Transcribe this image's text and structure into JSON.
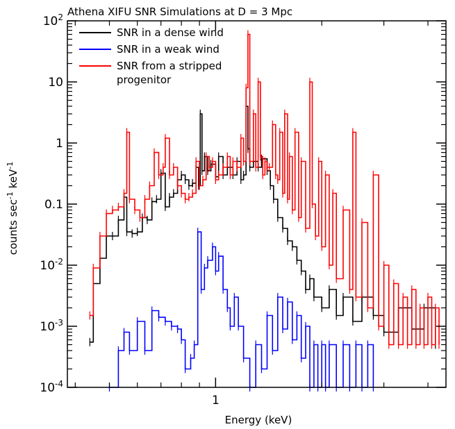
{
  "chart_data": {
    "type": "line",
    "title": "Athena XIFU SNR Simulations at D = 3 Mpc",
    "xlabel": "Energy (keV)",
    "ylabel": {
      "base": "counts sec",
      "sup1": "-1",
      "mid": " keV",
      "sup2": "-1"
    },
    "x_scale": "log",
    "y_scale": "log",
    "xlim": [
      0.38,
      4.5
    ],
    "ylim": [
      0.0001,
      100
    ],
    "x_ticks": [
      {
        "value": 1,
        "label": "1"
      }
    ],
    "y_ticks": [
      {
        "value": 100,
        "base": "10",
        "sup": "2"
      },
      {
        "value": 10,
        "base": "10",
        "sup": ""
      },
      {
        "value": 1,
        "base": "1",
        "sup": ""
      },
      {
        "value": 0.1,
        "base": "0.1",
        "sup": ""
      },
      {
        "value": 0.01,
        "base": "10",
        "sup": "-2"
      },
      {
        "value": 0.001,
        "base": "10",
        "sup": "-3"
      },
      {
        "value": 0.0001,
        "base": "10",
        "sup": "-4"
      }
    ],
    "legend_position": "top-left",
    "series": [
      {
        "name": "SNR in a dense wind",
        "label_lines": [
          "SNR in a dense wind"
        ],
        "color": "#000000",
        "points": [
          [
            0.44,
            0.00055
          ],
          [
            0.45,
            0.005
          ],
          [
            0.47,
            0.013
          ],
          [
            0.49,
            0.03
          ],
          [
            0.51,
            0.03
          ],
          [
            0.53,
            0.055
          ],
          [
            0.55,
            0.13
          ],
          [
            0.56,
            0.035
          ],
          [
            0.58,
            0.033
          ],
          [
            0.6,
            0.035
          ],
          [
            0.62,
            0.06
          ],
          [
            0.64,
            0.055
          ],
          [
            0.66,
            0.11
          ],
          [
            0.68,
            0.12
          ],
          [
            0.7,
            0.32
          ],
          [
            0.72,
            0.09
          ],
          [
            0.74,
            0.13
          ],
          [
            0.76,
            0.15
          ],
          [
            0.78,
            0.25
          ],
          [
            0.8,
            0.3
          ],
          [
            0.82,
            0.25
          ],
          [
            0.84,
            0.2
          ],
          [
            0.86,
            0.22
          ],
          [
            0.88,
            0.4
          ],
          [
            0.895,
            0.2
          ],
          [
            0.905,
            3.0
          ],
          [
            0.915,
            0.35
          ],
          [
            0.93,
            0.6
          ],
          [
            0.95,
            0.35
          ],
          [
            0.97,
            0.45
          ],
          [
            1.0,
            0.28
          ],
          [
            1.02,
            0.6
          ],
          [
            1.05,
            0.3
          ],
          [
            1.08,
            0.4
          ],
          [
            1.12,
            0.3
          ],
          [
            1.15,
            0.5
          ],
          [
            1.18,
            0.25
          ],
          [
            1.2,
            0.3
          ],
          [
            1.22,
            4.0
          ],
          [
            1.235,
            0.8
          ],
          [
            1.25,
            0.4
          ],
          [
            1.28,
            0.5
          ],
          [
            1.32,
            0.4
          ],
          [
            1.35,
            0.55
          ],
          [
            1.4,
            0.35
          ],
          [
            1.43,
            0.2
          ],
          [
            1.46,
            0.12
          ],
          [
            1.5,
            0.06
          ],
          [
            1.55,
            0.04
          ],
          [
            1.6,
            0.025
          ],
          [
            1.65,
            0.02
          ],
          [
            1.7,
            0.012
          ],
          [
            1.75,
            0.008
          ],
          [
            1.8,
            0.004
          ],
          [
            1.85,
            0.006
          ],
          [
            1.9,
            0.003
          ],
          [
            2.0,
            0.002
          ],
          [
            2.1,
            0.004
          ],
          [
            2.2,
            0.0015
          ],
          [
            2.3,
            0.003
          ],
          [
            2.45,
            0.0012
          ],
          [
            2.6,
            0.003
          ],
          [
            2.8,
            0.0015
          ],
          [
            3.0,
            0.0008
          ],
          [
            3.3,
            0.002
          ],
          [
            3.6,
            0.0009
          ],
          [
            3.9,
            0.002
          ],
          [
            4.2,
            0.0005
          ]
        ]
      },
      {
        "name": "SNR in a weak wind",
        "label_lines": [
          "SNR in a weak wind"
        ],
        "color": "#0000ff",
        "points": [
          [
            0.5,
            0.0001
          ],
          [
            0.53,
            0.0004
          ],
          [
            0.55,
            0.0008
          ],
          [
            0.57,
            0.0004
          ],
          [
            0.6,
            0.0012
          ],
          [
            0.63,
            0.0004
          ],
          [
            0.66,
            0.0018
          ],
          [
            0.69,
            0.0014
          ],
          [
            0.72,
            0.0012
          ],
          [
            0.75,
            0.001
          ],
          [
            0.78,
            0.0009
          ],
          [
            0.8,
            0.0006
          ],
          [
            0.82,
            0.0002
          ],
          [
            0.85,
            0.0003
          ],
          [
            0.87,
            0.0005
          ],
          [
            0.89,
            0.035
          ],
          [
            0.91,
            0.004
          ],
          [
            0.93,
            0.009
          ],
          [
            0.95,
            0.012
          ],
          [
            0.98,
            0.02
          ],
          [
            1.0,
            0.008
          ],
          [
            1.02,
            0.014
          ],
          [
            1.05,
            0.004
          ],
          [
            1.08,
            0.002
          ],
          [
            1.1,
            0.001
          ],
          [
            1.13,
            0.003
          ],
          [
            1.16,
            0.001
          ],
          [
            1.2,
            0.0003
          ],
          [
            1.25,
            0.0001
          ],
          [
            1.3,
            0.0005
          ],
          [
            1.35,
            0.0002
          ],
          [
            1.4,
            0.0015
          ],
          [
            1.45,
            0.0004
          ],
          [
            1.5,
            0.003
          ],
          [
            1.55,
            0.0009
          ],
          [
            1.6,
            0.0025
          ],
          [
            1.65,
            0.0006
          ],
          [
            1.7,
            0.0015
          ],
          [
            1.75,
            0.0003
          ],
          [
            1.8,
            0.001
          ],
          [
            1.85,
            0.0001
          ],
          [
            1.9,
            0.0005
          ],
          [
            1.95,
            0.0001
          ],
          [
            2.0,
            0.0005
          ],
          [
            2.05,
            0.0001
          ],
          [
            2.1,
            0.0005
          ],
          [
            2.2,
            0.0001
          ],
          [
            2.3,
            0.0005
          ],
          [
            2.4,
            0.0001
          ],
          [
            2.5,
            0.0005
          ],
          [
            2.6,
            0.0001
          ],
          [
            2.7,
            0.0005
          ],
          [
            2.8,
            0.0001
          ]
        ]
      },
      {
        "name": "SNR from a stripped progenitor",
        "label_lines": [
          "SNR from a stripped",
          "progenitor"
        ],
        "color": "#ff0000",
        "points": [
          [
            0.44,
            0.0015
          ],
          [
            0.45,
            0.009
          ],
          [
            0.47,
            0.03
          ],
          [
            0.49,
            0.07
          ],
          [
            0.51,
            0.08
          ],
          [
            0.53,
            0.09
          ],
          [
            0.55,
            0.15
          ],
          [
            0.56,
            1.5
          ],
          [
            0.57,
            0.12
          ],
          [
            0.59,
            0.08
          ],
          [
            0.61,
            0.06
          ],
          [
            0.63,
            0.12
          ],
          [
            0.65,
            0.2
          ],
          [
            0.67,
            0.7
          ],
          [
            0.69,
            0.3
          ],
          [
            0.71,
            0.4
          ],
          [
            0.72,
            1.2
          ],
          [
            0.74,
            0.3
          ],
          [
            0.76,
            0.4
          ],
          [
            0.78,
            0.2
          ],
          [
            0.8,
            0.15
          ],
          [
            0.82,
            0.12
          ],
          [
            0.84,
            0.13
          ],
          [
            0.86,
            0.15
          ],
          [
            0.88,
            0.5
          ],
          [
            0.9,
            0.2
          ],
          [
            0.92,
            0.25
          ],
          [
            0.94,
            0.6
          ],
          [
            0.96,
            0.4
          ],
          [
            0.98,
            0.5
          ],
          [
            1.0,
            0.25
          ],
          [
            1.02,
            0.3
          ],
          [
            1.05,
            0.4
          ],
          [
            1.08,
            0.6
          ],
          [
            1.1,
            0.3
          ],
          [
            1.12,
            0.5
          ],
          [
            1.15,
            0.4
          ],
          [
            1.18,
            1.2
          ],
          [
            1.2,
            0.5
          ],
          [
            1.22,
            8.0
          ],
          [
            1.235,
            60.0
          ],
          [
            1.25,
            0.5
          ],
          [
            1.28,
            3.0
          ],
          [
            1.3,
            0.4
          ],
          [
            1.32,
            10.0
          ],
          [
            1.34,
            0.6
          ],
          [
            1.36,
            0.3
          ],
          [
            1.38,
            0.5
          ],
          [
            1.4,
            0.4
          ],
          [
            1.42,
            0.4
          ],
          [
            1.45,
            2.0
          ],
          [
            1.48,
            0.3
          ],
          [
            1.5,
            0.25
          ],
          [
            1.52,
            1.5
          ],
          [
            1.55,
            0.15
          ],
          [
            1.57,
            3.0
          ],
          [
            1.6,
            0.12
          ],
          [
            1.62,
            0.6
          ],
          [
            1.65,
            0.08
          ],
          [
            1.68,
            1.5
          ],
          [
            1.72,
            0.06
          ],
          [
            1.75,
            0.5
          ],
          [
            1.8,
            0.04
          ],
          [
            1.85,
            10.0
          ],
          [
            1.88,
            0.1
          ],
          [
            1.92,
            0.03
          ],
          [
            1.96,
            0.5
          ],
          [
            2.0,
            0.02
          ],
          [
            2.05,
            0.3
          ],
          [
            2.1,
            0.01
          ],
          [
            2.15,
            0.15
          ],
          [
            2.2,
            0.006
          ],
          [
            2.3,
            0.08
          ],
          [
            2.4,
            0.004
          ],
          [
            2.45,
            1.5
          ],
          [
            2.5,
            0.003
          ],
          [
            2.6,
            0.05
          ],
          [
            2.7,
            0.002
          ],
          [
            2.8,
            0.3
          ],
          [
            2.9,
            0.001
          ],
          [
            3.0,
            0.01
          ],
          [
            3.1,
            0.0005
          ],
          [
            3.2,
            0.005
          ],
          [
            3.3,
            0.0005
          ],
          [
            3.4,
            0.003
          ],
          [
            3.5,
            0.0005
          ],
          [
            3.6,
            0.004
          ],
          [
            3.7,
            0.0005
          ],
          [
            3.8,
            0.002
          ],
          [
            3.9,
            0.0005
          ],
          [
            4.0,
            0.003
          ],
          [
            4.1,
            0.0005
          ],
          [
            4.2,
            0.002
          ],
          [
            4.3,
            0.0005
          ]
        ]
      }
    ]
  }
}
